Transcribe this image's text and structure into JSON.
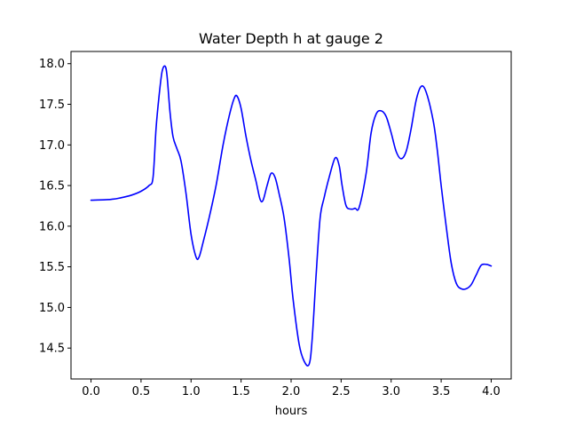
{
  "chart_data": {
    "type": "line",
    "title": "Water Depth h at gauge 2",
    "xlabel": "hours",
    "ylabel": "",
    "xlim": [
      -0.2,
      4.2
    ],
    "ylim": [
      14.12,
      18.15
    ],
    "xticks": [
      0.0,
      0.5,
      1.0,
      1.5,
      2.0,
      2.5,
      3.0,
      3.5,
      4.0
    ],
    "xtick_labels": [
      "0.0",
      "0.5",
      "1.0",
      "1.5",
      "2.0",
      "2.5",
      "3.0",
      "3.5",
      "4.0"
    ],
    "yticks": [
      14.5,
      15.0,
      15.5,
      16.0,
      16.5,
      17.0,
      17.5,
      18.0
    ],
    "ytick_labels": [
      "14.5",
      "15.0",
      "15.5",
      "16.0",
      "16.5",
      "17.0",
      "17.5",
      "18.0"
    ],
    "grid": false,
    "series": [
      {
        "color": "#0000ff",
        "x": [
          0.0,
          0.2,
          0.3,
          0.4,
          0.5,
          0.58,
          0.62,
          0.65,
          0.68,
          0.71,
          0.74,
          0.76,
          0.79,
          0.82,
          0.86,
          0.9,
          0.95,
          1.0,
          1.05,
          1.08,
          1.12,
          1.18,
          1.25,
          1.32,
          1.38,
          1.43,
          1.46,
          1.5,
          1.55,
          1.6,
          1.65,
          1.69,
          1.72,
          1.76,
          1.8,
          1.84,
          1.88,
          1.93,
          1.98,
          2.02,
          2.08,
          2.13,
          2.18,
          2.21,
          2.25,
          2.29,
          2.33,
          2.38,
          2.44,
          2.48,
          2.51,
          2.55,
          2.6,
          2.64,
          2.68,
          2.75,
          2.8,
          2.85,
          2.9,
          2.95,
          3.0,
          3.05,
          3.1,
          3.15,
          3.2,
          3.25,
          3.3,
          3.35,
          3.42,
          3.46,
          3.5,
          3.55,
          3.6,
          3.65,
          3.7,
          3.75,
          3.8,
          3.85,
          3.9,
          3.95,
          3.98,
          4.0
        ],
        "y": [
          16.32,
          16.33,
          16.35,
          16.38,
          16.43,
          16.5,
          16.6,
          17.2,
          17.6,
          17.9,
          17.97,
          17.85,
          17.4,
          17.1,
          16.95,
          16.8,
          16.4,
          15.9,
          15.62,
          15.62,
          15.8,
          16.1,
          16.5,
          17.0,
          17.35,
          17.57,
          17.6,
          17.45,
          17.1,
          16.8,
          16.55,
          16.33,
          16.32,
          16.5,
          16.65,
          16.6,
          16.4,
          16.1,
          15.6,
          15.1,
          14.55,
          14.34,
          14.3,
          14.6,
          15.4,
          16.1,
          16.35,
          16.6,
          16.84,
          16.75,
          16.5,
          16.25,
          16.21,
          16.22,
          16.23,
          16.65,
          17.15,
          17.38,
          17.42,
          17.35,
          17.15,
          16.92,
          16.83,
          16.92,
          17.2,
          17.55,
          17.72,
          17.65,
          17.3,
          16.95,
          16.5,
          16.0,
          15.55,
          15.3,
          15.23,
          15.23,
          15.28,
          15.4,
          15.52,
          15.53,
          15.52,
          15.51
        ]
      }
    ]
  }
}
